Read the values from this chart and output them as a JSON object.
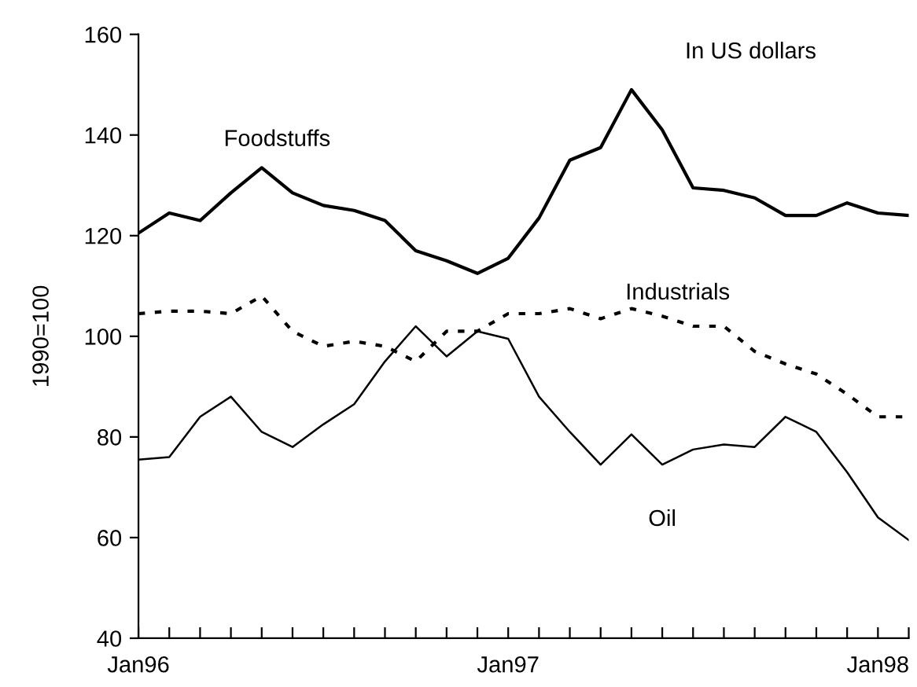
{
  "chart_data": {
    "type": "line",
    "categories": [
      "Jan96",
      null,
      null,
      null,
      null,
      null,
      null,
      null,
      null,
      null,
      null,
      null,
      "Jan97",
      null,
      null,
      null,
      null,
      null,
      null,
      null,
      null,
      null,
      null,
      null,
      "Jan98",
      null
    ],
    "ylabel": "1990=100",
    "ylim": [
      40,
      160
    ],
    "yticks": [
      40,
      60,
      80,
      100,
      120,
      140,
      160
    ],
    "annotations": [
      "In US dollars"
    ],
    "grid": false,
    "legend": false,
    "marker": "none",
    "series": [
      {
        "name": "Foodstuffs",
        "color": "#000000",
        "line_style": "solid",
        "values": [
          120.5,
          124.5,
          123,
          128.5,
          133.5,
          128.5,
          126,
          125,
          123,
          117,
          115,
          112.5,
          115.5,
          123.5,
          135,
          137.5,
          149,
          141,
          129.5,
          129,
          127.5,
          124,
          124,
          126.5,
          124.5,
          124
        ]
      },
      {
        "name": "Industrials",
        "color": "#000000",
        "line_style": "dotted",
        "values": [
          104.5,
          105,
          105,
          104.5,
          108,
          101,
          98,
          99,
          98,
          95,
          101,
          101,
          104.5,
          104.5,
          105.5,
          103.5,
          105.5,
          104,
          102,
          102,
          97,
          94.5,
          92.5,
          88.5,
          84,
          84
        ]
      },
      {
        "name": "Oil",
        "color": "#000000",
        "line_style": "solid",
        "values": [
          75.5,
          76,
          84,
          88,
          81,
          78,
          82.5,
          86.5,
          95,
          102,
          96,
          101,
          99.5,
          88,
          81,
          74.5,
          80.5,
          74.5,
          77.5,
          78.5,
          78,
          84,
          81,
          73,
          64,
          59.5
        ]
      }
    ]
  }
}
